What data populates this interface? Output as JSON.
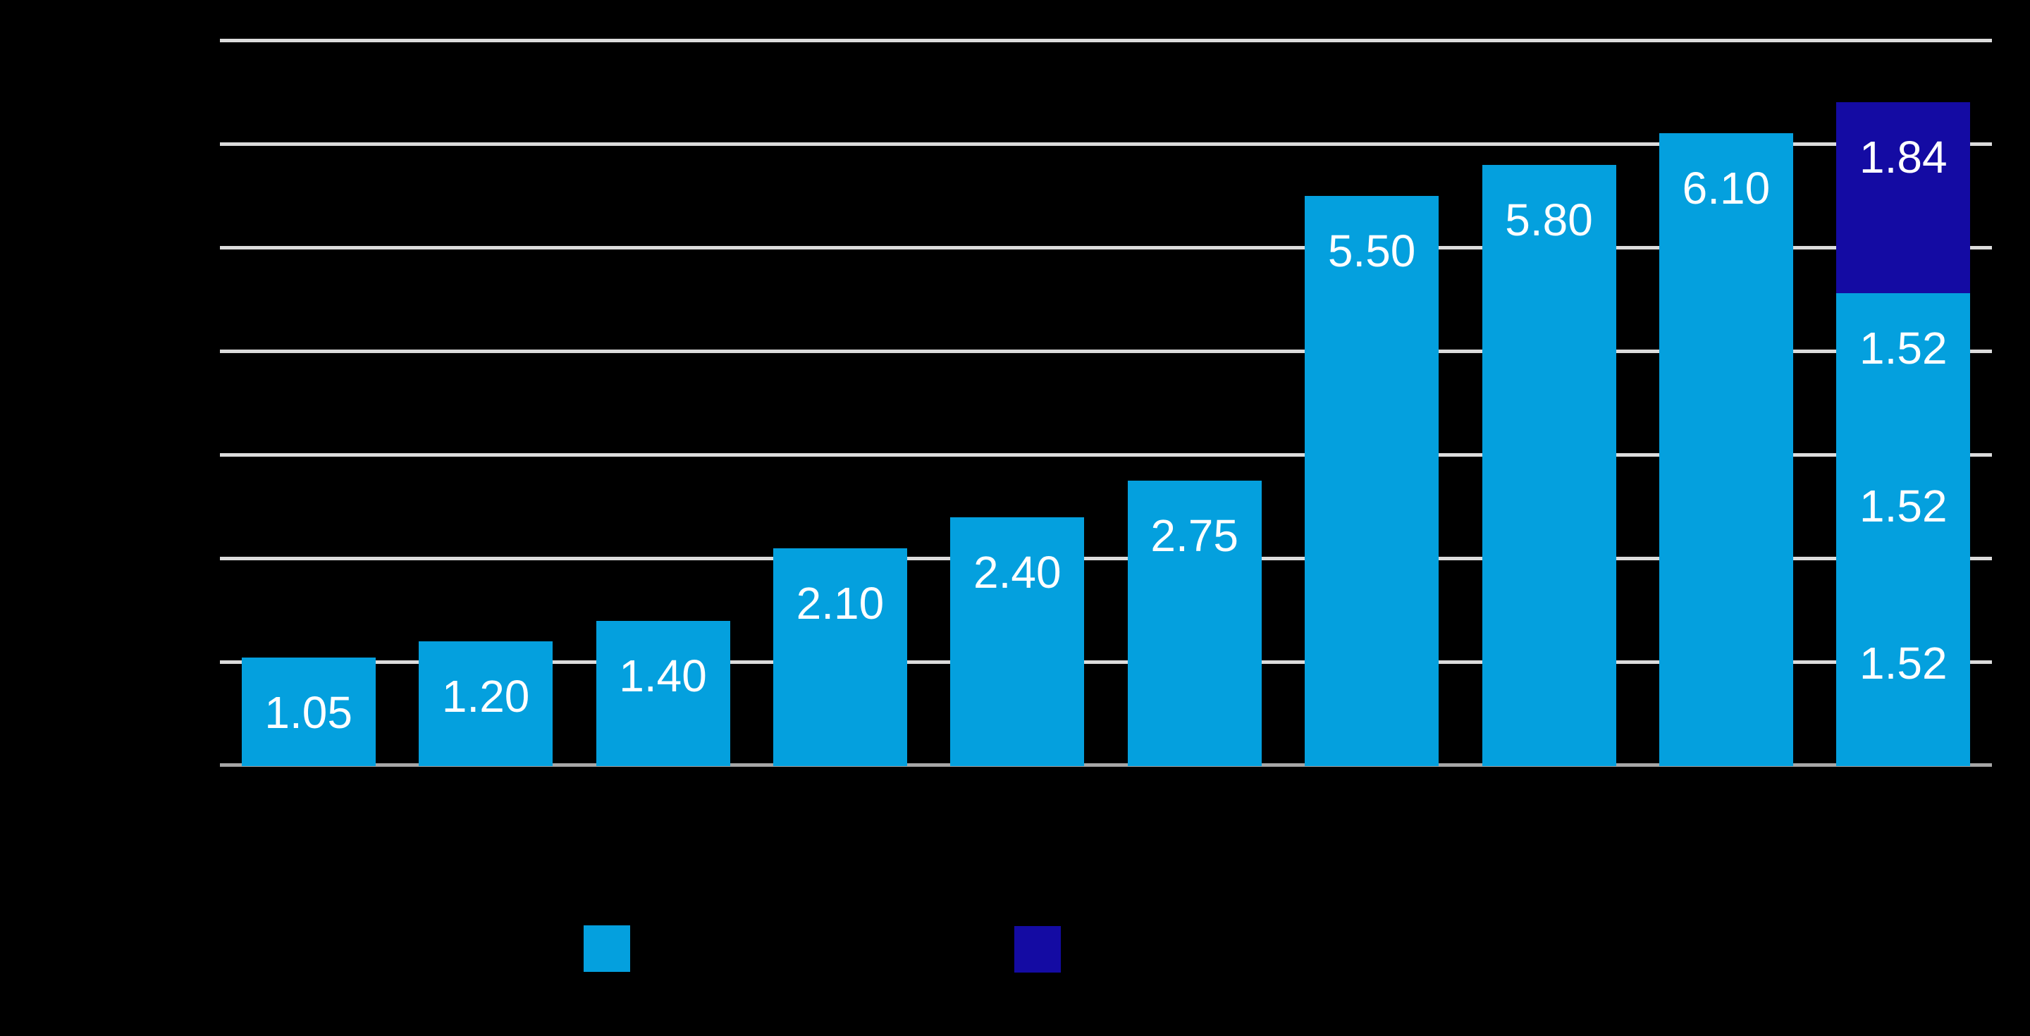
{
  "chart_data": {
    "type": "bar",
    "stacked": "only last bar is a stack of 4 segments",
    "colors": {
      "light_blue": "#04A0DE",
      "dark_blue": "#140BA3",
      "gridline": "#DCDCDC",
      "axis_line": "#A6A6A6",
      "label_text": "#FFFFFF",
      "background": "#000000"
    },
    "y_axis": {
      "min": 0,
      "max": 7,
      "gridline_step": 1,
      "gridlines_count": 8,
      "tick_labels_visible": false
    },
    "x_axis": {
      "tick_labels_visible": false,
      "categories_count": 10
    },
    "bars": [
      {
        "segments": [
          {
            "value": 1.05,
            "label": "1.05",
            "color_key": "light_blue"
          }
        ]
      },
      {
        "segments": [
          {
            "value": 1.2,
            "label": "1.20",
            "color_key": "light_blue"
          }
        ]
      },
      {
        "segments": [
          {
            "value": 1.4,
            "label": "1.40",
            "color_key": "light_blue"
          }
        ]
      },
      {
        "segments": [
          {
            "value": 2.1,
            "label": "2.10",
            "color_key": "light_blue"
          }
        ]
      },
      {
        "segments": [
          {
            "value": 2.4,
            "label": "2.40",
            "color_key": "light_blue"
          }
        ]
      },
      {
        "segments": [
          {
            "value": 2.75,
            "label": "2.75",
            "color_key": "light_blue"
          }
        ]
      },
      {
        "segments": [
          {
            "value": 5.5,
            "label": "5.50",
            "color_key": "light_blue"
          }
        ]
      },
      {
        "segments": [
          {
            "value": 5.8,
            "label": "5.80",
            "color_key": "light_blue"
          }
        ]
      },
      {
        "segments": [
          {
            "value": 6.1,
            "label": "6.10",
            "color_key": "light_blue"
          }
        ]
      },
      {
        "segments": [
          {
            "value": 1.52,
            "label": "1.52",
            "color_key": "light_blue"
          },
          {
            "value": 1.52,
            "label": "1.52",
            "color_key": "light_blue"
          },
          {
            "value": 1.52,
            "label": "1.52",
            "color_key": "light_blue"
          },
          {
            "value": 1.84,
            "label": "1.84",
            "color_key": "dark_blue"
          }
        ]
      }
    ],
    "legend": {
      "position": "bottom",
      "items": [
        {
          "color_key": "light_blue"
        },
        {
          "color_key": "dark_blue"
        }
      ]
    }
  }
}
